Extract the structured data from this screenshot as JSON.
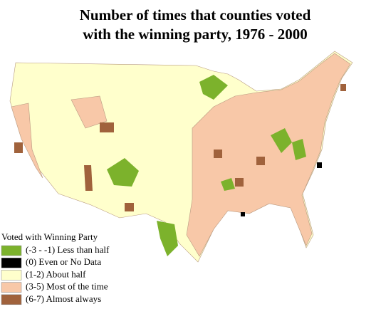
{
  "title": {
    "lines": [
      "Number of times that counties voted",
      "with the winning party, 1976 - 2000"
    ]
  },
  "legend": {
    "title": "Voted with Winning Party",
    "items": [
      {
        "label": "(-3 - -1) Less than half",
        "color": "#7cb22c"
      },
      {
        "label": "(0) Even or No Data",
        "color": "#000000"
      },
      {
        "label": "(1-2) About half",
        "color": "#ffffcc"
      },
      {
        "label": "(3-5) Most of the time",
        "color": "#f8c8a8"
      },
      {
        "label": "(6-7) Almost always",
        "color": "#a0623c"
      }
    ]
  }
}
